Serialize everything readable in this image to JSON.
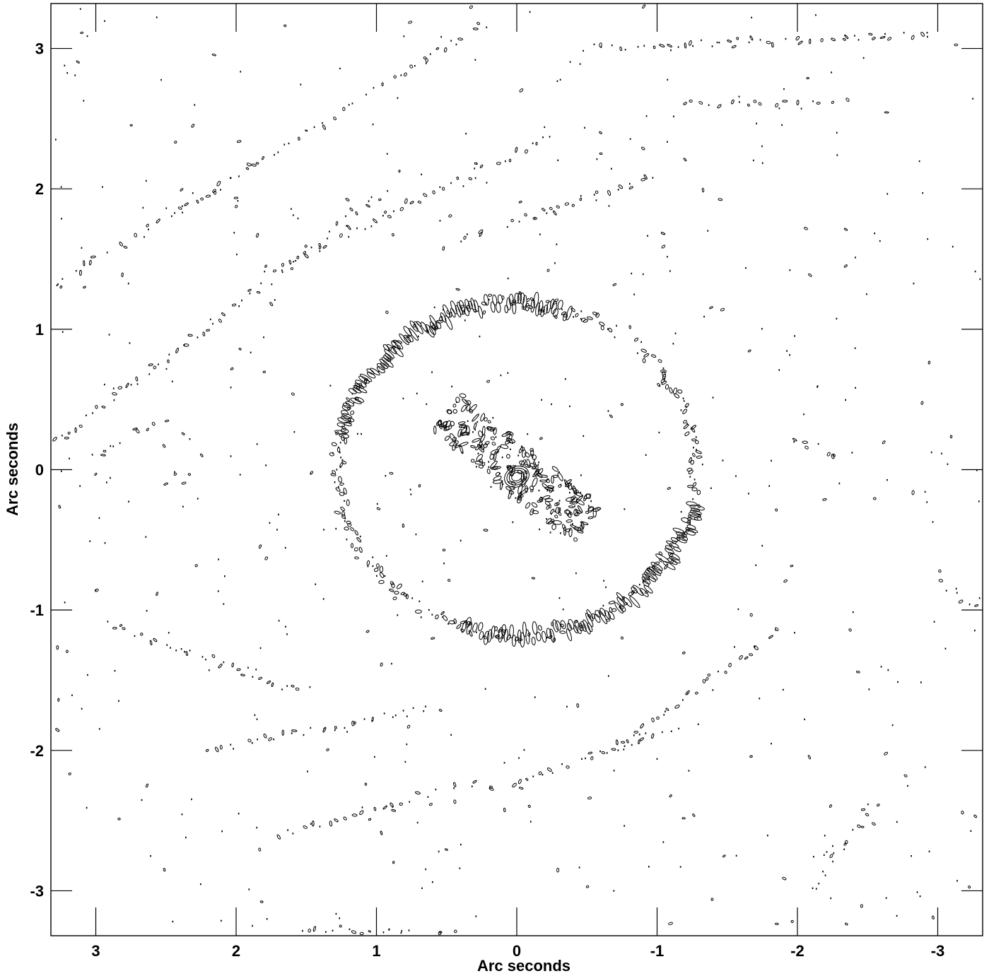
{
  "chart_data": {
    "type": "contour",
    "xlabel": "Arc seconds",
    "ylabel": "Arc seconds",
    "xlim": [
      3.32,
      -3.32
    ],
    "ylim": [
      -3.32,
      3.32
    ],
    "x_ticks": [
      3,
      2,
      1,
      0,
      -1,
      -2,
      -3
    ],
    "x_tick_labels": [
      "3",
      "2",
      "1",
      "0",
      "-1",
      "-2",
      "-3"
    ],
    "y_ticks": [
      3,
      2,
      1,
      0,
      -1,
      -2,
      -3
    ],
    "y_tick_labels": [
      "3",
      "2",
      "1",
      "0",
      "-1",
      "-2",
      "-3"
    ],
    "x_reversed": true,
    "grid": false,
    "contour_color": "#000000",
    "features": {
      "ring": {
        "center": [
          0.0,
          0.0
        ],
        "semi_major": 1.28,
        "semi_minor": 1.18,
        "bright_arcs": [
          "upper-left",
          "lower-right"
        ]
      },
      "core": {
        "center": [
          0.0,
          -0.05
        ],
        "peak_rings": 4
      },
      "central_jet_band": {
        "from": [
          0.5,
          0.4
        ],
        "to": [
          -0.5,
          -0.4
        ]
      },
      "sidelobe_stripes": [
        {
          "from": [
            3.3,
            1.3
          ],
          "to": [
            0.2,
            3.2
          ]
        },
        {
          "from": [
            3.3,
            0.2
          ],
          "to": [
            0.9,
            2.0
          ]
        },
        {
          "from": [
            1.8,
            1.4
          ],
          "to": [
            -0.3,
            2.4
          ]
        },
        {
          "from": [
            0.5,
            1.6
          ],
          "to": [
            -1.0,
            2.1
          ]
        },
        {
          "from": [
            -0.5,
            3.0
          ],
          "to": [
            -3.0,
            3.1
          ]
        },
        {
          "from": [
            -1.2,
            2.6
          ],
          "to": [
            -2.3,
            2.6
          ]
        },
        {
          "from": [
            2.9,
            -1.1
          ],
          "to": [
            1.5,
            -1.6
          ]
        },
        {
          "from": [
            2.2,
            -2.0
          ],
          "to": [
            0.6,
            -1.7
          ]
        },
        {
          "from": [
            1.7,
            -2.6
          ],
          "to": [
            0.2,
            -2.2
          ]
        },
        {
          "from": [
            1.6,
            -3.3
          ],
          "to": [
            0.3,
            -3.3
          ]
        },
        {
          "from": [
            -0.7,
            -2.0
          ],
          "to": [
            -1.9,
            -1.1
          ]
        },
        {
          "from": [
            0.2,
            -2.3
          ],
          "to": [
            -1.2,
            -1.8
          ]
        },
        {
          "from": [
            -2.1,
            -3.0
          ],
          "to": [
            -2.6,
            -2.3
          ]
        },
        {
          "from": [
            -3.0,
            -0.8
          ],
          "to": [
            -3.3,
            -1.0
          ]
        },
        {
          "from": [
            -2.0,
            0.2
          ],
          "to": [
            -2.3,
            0.1
          ]
        },
        {
          "from": [
            3.0,
            0.1
          ],
          "to": [
            2.5,
            0.4
          ]
        }
      ]
    }
  }
}
